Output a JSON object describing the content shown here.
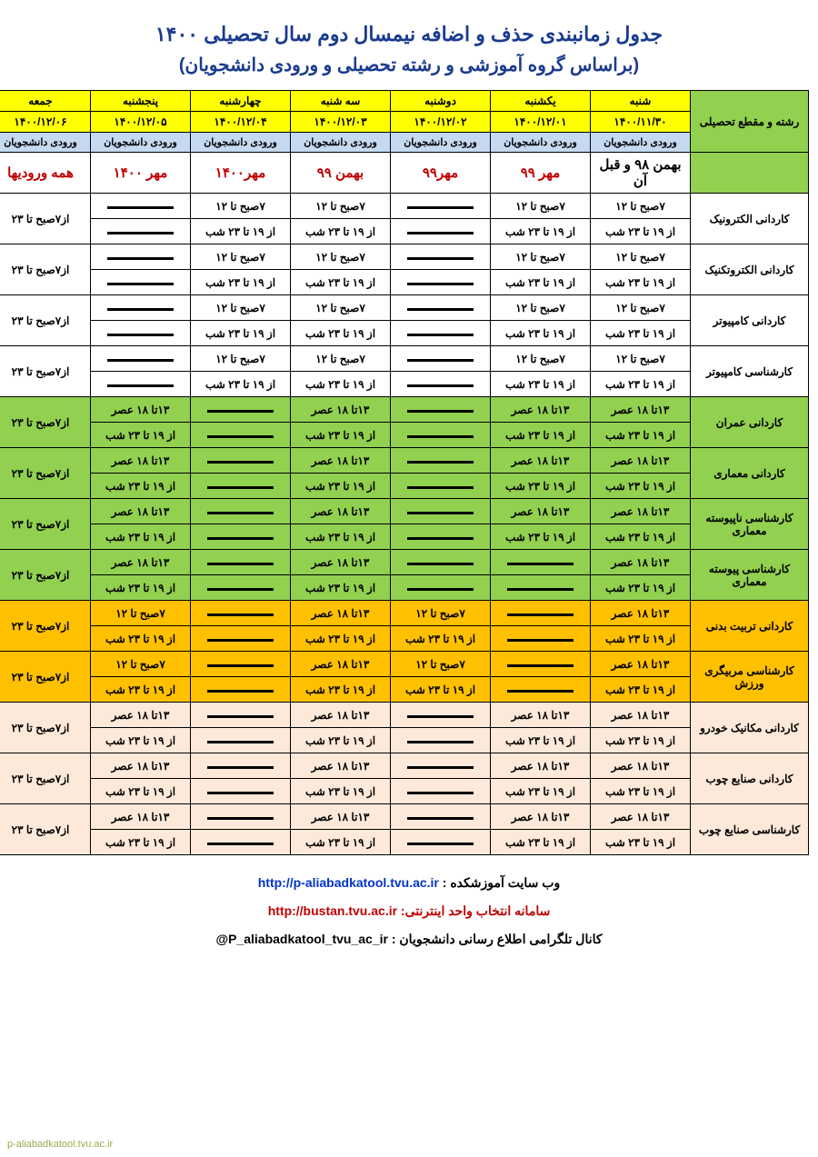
{
  "title1": "جدول زمانبندی حذف و اضافه نیمسال دوم  سال تحصیلی ۱۴۰۰",
  "title2": "(براساس گروه آموزشی و رشته تحصیلی و ورودی دانشجویان)",
  "colors": {
    "title": "#1a3b8f",
    "yellow": "#ffff00",
    "header_blue": "#c5d9f1",
    "green": "#92d050",
    "orange": "#ffc000",
    "pink": "#fde9d9",
    "red_text": "#c00000"
  },
  "header": {
    "program_label": "رشته و مقطع تحصیلی",
    "entry_label": "ورودی دانشجویان",
    "days": [
      "شنبه",
      "یکشنبه",
      "دوشنبه",
      "سه شنبه",
      "چهارشنبه",
      "پنجشنبه",
      "جمعه"
    ],
    "dates": [
      "۱۴۰۰/۱۱/۳۰",
      "۱۴۰۰/۱۲/۰۱",
      "۱۴۰۰/۱۲/۰۲",
      "۱۴۰۰/۱۲/۰۳",
      "۱۴۰۰/۱۲/۰۴",
      "۱۴۰۰/۱۲/۰۵",
      "۱۴۰۰/۱۲/۰۶"
    ],
    "entries": [
      {
        "text": "بهمن ۹۸ و قبل آن",
        "red": false
      },
      {
        "text": "مهر ۹۹",
        "red": true
      },
      {
        "text": "مهر۹۹",
        "red": true
      },
      {
        "text": "بهمن ۹۹",
        "red": true
      },
      {
        "text": "مهر۱۴۰۰",
        "red": true
      },
      {
        "text": "مهر ۱۴۰۰",
        "red": true
      },
      {
        "text": "همه ورودیها",
        "red": true
      }
    ]
  },
  "time_labels": {
    "m7_12": "۷صبح تا ۱۲",
    "m19_23": "از ۱۹ تا ۲۳ شب",
    "a13_18": "۱۳تا ۱۸ عصر",
    "friday": "از۷صبح تا ۲۳"
  },
  "rows": [
    {
      "program": "کاردانی الکترونیک",
      "bg": "bg-white",
      "cells": [
        [
          "m7_12",
          "m19_23"
        ],
        [
          "m7_12",
          "m19_23"
        ],
        null,
        [
          "m7_12",
          "m19_23"
        ],
        [
          "m7_12",
          "m19_23"
        ],
        null,
        "friday"
      ]
    },
    {
      "program": "کاردانی الکتروتکنیک",
      "bg": "bg-white",
      "cells": [
        [
          "m7_12",
          "m19_23"
        ],
        [
          "m7_12",
          "m19_23"
        ],
        null,
        [
          "m7_12",
          "m19_23"
        ],
        [
          "m7_12",
          "m19_23"
        ],
        null,
        "friday"
      ]
    },
    {
      "program": "کاردانی کامپیوتر",
      "bg": "bg-white",
      "cells": [
        [
          "m7_12",
          "m19_23"
        ],
        [
          "m7_12",
          "m19_23"
        ],
        null,
        [
          "m7_12",
          "m19_23"
        ],
        [
          "m7_12",
          "m19_23"
        ],
        null,
        "friday"
      ]
    },
    {
      "program": "کارشناسی کامپیوتر",
      "bg": "bg-white",
      "cells": [
        [
          "m7_12",
          "m19_23"
        ],
        [
          "m7_12",
          "m19_23"
        ],
        null,
        [
          "m7_12",
          "m19_23"
        ],
        [
          "m7_12",
          "m19_23"
        ],
        null,
        "friday"
      ]
    },
    {
      "program": "کاردانی عمران",
      "bg": "bg-green",
      "cells": [
        [
          "a13_18",
          "m19_23"
        ],
        [
          "a13_18",
          "m19_23"
        ],
        null,
        [
          "a13_18",
          "m19_23"
        ],
        null,
        [
          "a13_18",
          "m19_23"
        ],
        "friday"
      ]
    },
    {
      "program": "کاردانی معماری",
      "bg": "bg-green",
      "cells": [
        [
          "a13_18",
          "m19_23"
        ],
        [
          "a13_18",
          "m19_23"
        ],
        null,
        [
          "a13_18",
          "m19_23"
        ],
        null,
        [
          "a13_18",
          "m19_23"
        ],
        "friday"
      ]
    },
    {
      "program": "کارشناسی ناپیوسته  معماری",
      "bg": "bg-green",
      "cells": [
        [
          "a13_18",
          "m19_23"
        ],
        [
          "a13_18",
          "m19_23"
        ],
        null,
        [
          "a13_18",
          "m19_23"
        ],
        null,
        [
          "a13_18",
          "m19_23"
        ],
        "friday"
      ]
    },
    {
      "program": "کارشناسی پیوسته  معماری",
      "bg": "bg-green",
      "cells": [
        [
          "a13_18",
          "m19_23"
        ],
        null,
        null,
        [
          "a13_18",
          "m19_23"
        ],
        null,
        [
          "a13_18",
          "m19_23"
        ],
        "friday"
      ]
    },
    {
      "program": "کاردانی تربیت بدنی",
      "bg": "bg-orange",
      "cells": [
        [
          "a13_18",
          "m19_23"
        ],
        null,
        [
          "m7_12",
          "m19_23"
        ],
        [
          "a13_18",
          "m19_23"
        ],
        null,
        [
          "m7_12",
          "m19_23"
        ],
        "friday"
      ]
    },
    {
      "program": "کارشناسی مربیگری ورزش",
      "bg": "bg-orange",
      "cells": [
        [
          "a13_18",
          "m19_23"
        ],
        null,
        [
          "m7_12",
          "m19_23"
        ],
        [
          "a13_18",
          "m19_23"
        ],
        null,
        [
          "m7_12",
          "m19_23"
        ],
        "friday"
      ]
    },
    {
      "program": "کاردانی مکانیک خودرو",
      "bg": "bg-pink",
      "cells": [
        [
          "a13_18",
          "m19_23"
        ],
        [
          "a13_18",
          "m19_23"
        ],
        null,
        [
          "a13_18",
          "m19_23"
        ],
        null,
        [
          "a13_18",
          "m19_23"
        ],
        "friday"
      ]
    },
    {
      "program": "کاردانی صنایع چوب",
      "bg": "bg-pink",
      "cells": [
        [
          "a13_18",
          "m19_23"
        ],
        [
          "a13_18",
          "m19_23"
        ],
        null,
        [
          "a13_18",
          "m19_23"
        ],
        null,
        [
          "a13_18",
          "m19_23"
        ],
        "friday"
      ]
    },
    {
      "program": "کارشناسی صنایع چوب",
      "bg": "bg-pink",
      "cells": [
        [
          "a13_18",
          "m19_23"
        ],
        [
          "a13_18",
          "m19_23"
        ],
        null,
        [
          "a13_18",
          "m19_23"
        ],
        null,
        [
          "a13_18",
          "m19_23"
        ],
        "friday"
      ]
    }
  ],
  "footer": {
    "line1_label": "وب سایت آموزشکده :",
    "line1_url": "http://p-aliabadkatool.tvu.ac.ir",
    "line2_label": "سامانه  انتخاب واحد اینترنتی:",
    "line2_url": "http://bustan.tvu.ac.ir",
    "line3_label": "کانال تلگرامی اطلاع رسانی دانشجویان :",
    "line3_handle": "@P_aliabadkatool_tvu_ac_ir"
  },
  "watermark": "p-aliabadkatool.tvu.ac.ir"
}
